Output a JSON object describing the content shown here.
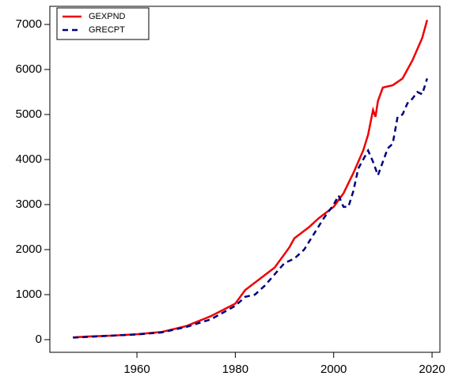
{
  "chart_data": {
    "type": "line",
    "series": [
      {
        "name": "GEXPND",
        "color": "#ee0000",
        "dash": false,
        "x": [
          1947,
          1950,
          1955,
          1960,
          1965,
          1970,
          1975,
          1980,
          1982,
          1985,
          1988,
          1990,
          1991,
          1992,
          1995,
          1997,
          2000,
          2002,
          2004,
          2006,
          2007,
          2008,
          2008.5,
          2009,
          2010,
          2012,
          2014,
          2016,
          2018,
          2019
        ],
        "values": [
          50,
          70,
          90,
          120,
          170,
          300,
          520,
          800,
          1100,
          1350,
          1600,
          1900,
          2050,
          2250,
          2500,
          2700,
          2950,
          3250,
          3700,
          4200,
          4550,
          5100,
          4950,
          5300,
          5600,
          5650,
          5800,
          6200,
          6700,
          7100
        ]
      },
      {
        "name": "GRECPT",
        "color": "#000080",
        "dash": true,
        "x": [
          1947,
          1950,
          1955,
          1960,
          1965,
          1970,
          1975,
          1980,
          1982,
          1984,
          1986,
          1988,
          1990,
          1992,
          1994,
          1996,
          1998,
          2000,
          2001,
          2002,
          2003,
          2004,
          2005,
          2006,
          2007,
          2008,
          2009,
          2010,
          2011,
          2012,
          2013,
          2014,
          2015,
          2016,
          2017,
          2018,
          2019
        ],
        "values": [
          45,
          60,
          90,
          115,
          160,
          280,
          450,
          750,
          950,
          1000,
          1200,
          1450,
          1700,
          1800,
          2000,
          2350,
          2700,
          3000,
          3200,
          2950,
          2950,
          3300,
          3800,
          4000,
          4200,
          3950,
          3650,
          3950,
          4250,
          4350,
          4950,
          5000,
          5250,
          5350,
          5500,
          5450,
          5800
        ]
      }
    ],
    "xlim": [
      1942.3,
      2021.6
    ],
    "xticks": [
      1960,
      1980,
      2000,
      2020
    ],
    "ylim": [
      -281,
      7403
    ],
    "yticks": [
      0,
      1000,
      2000,
      3000,
      4000,
      5000,
      6000,
      7000
    ],
    "legend": "top-left"
  }
}
